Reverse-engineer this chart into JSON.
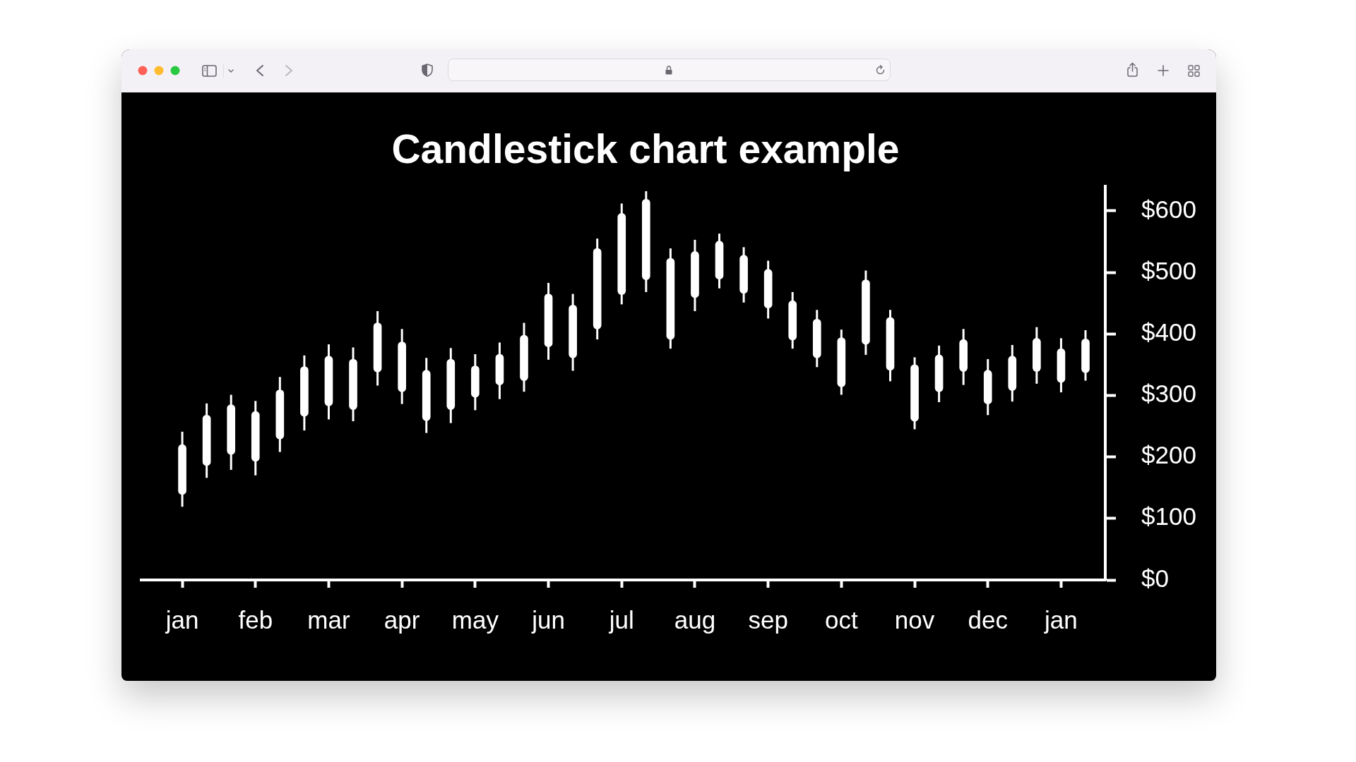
{
  "chart_data": {
    "type": "candlestick",
    "title": "Candlestick chart example",
    "categories": [
      "jan",
      null,
      null,
      "feb",
      null,
      null,
      "mar",
      null,
      null,
      "apr",
      null,
      null,
      "may",
      null,
      null,
      "jun",
      null,
      null,
      "jul",
      null,
      null,
      "aug",
      null,
      null,
      "sep",
      null,
      null,
      "oct",
      null,
      null,
      "nov",
      null,
      null,
      "dec",
      null,
      null,
      "jan",
      null
    ],
    "ohlc": [
      [
        139,
        241,
        119,
        220
      ],
      [
        186,
        287,
        166,
        268
      ],
      [
        204,
        301,
        179,
        285
      ],
      [
        193,
        291,
        170,
        274
      ],
      [
        229,
        330,
        208,
        309
      ],
      [
        266,
        365,
        243,
        347
      ],
      [
        283,
        383,
        261,
        364
      ],
      [
        277,
        378,
        258,
        359
      ],
      [
        338,
        437,
        316,
        418
      ],
      [
        306,
        408,
        286,
        387
      ],
      [
        259,
        361,
        239,
        341
      ],
      [
        277,
        377,
        255,
        359
      ],
      [
        297,
        367,
        276,
        348
      ],
      [
        317,
        386,
        294,
        367
      ],
      [
        324,
        418,
        306,
        398
      ],
      [
        379,
        483,
        358,
        465
      ],
      [
        361,
        465,
        340,
        447
      ],
      [
        408,
        555,
        391,
        539
      ],
      [
        464,
        612,
        448,
        596
      ],
      [
        488,
        632,
        468,
        619
      ],
      [
        391,
        539,
        376,
        523
      ],
      [
        459,
        553,
        437,
        534
      ],
      [
        489,
        563,
        474,
        551
      ],
      [
        466,
        541,
        451,
        528
      ],
      [
        442,
        519,
        425,
        505
      ],
      [
        390,
        468,
        376,
        454
      ],
      [
        361,
        439,
        346,
        424
      ],
      [
        314,
        407,
        301,
        394
      ],
      [
        383,
        503,
        366,
        488
      ],
      [
        341,
        439,
        323,
        427
      ],
      [
        258,
        362,
        245,
        350
      ],
      [
        306,
        381,
        289,
        366
      ],
      [
        339,
        408,
        317,
        391
      ],
      [
        286,
        359,
        268,
        341
      ],
      [
        308,
        382,
        290,
        364
      ],
      [
        339,
        411,
        319,
        393
      ],
      [
        321,
        393,
        305,
        376
      ],
      [
        337,
        406,
        324,
        392
      ]
    ],
    "color": "#ffffff",
    "ylim": [
      0,
      640
    ],
    "yticks": [
      {
        "value": 0,
        "label": "$0"
      },
      {
        "value": 100,
        "label": "$100"
      },
      {
        "value": 200,
        "label": "$200"
      },
      {
        "value": 300,
        "label": "$300"
      },
      {
        "value": 400,
        "label": "$400"
      },
      {
        "value": 500,
        "label": "$500"
      },
      {
        "value": 600,
        "label": "$600"
      }
    ]
  }
}
